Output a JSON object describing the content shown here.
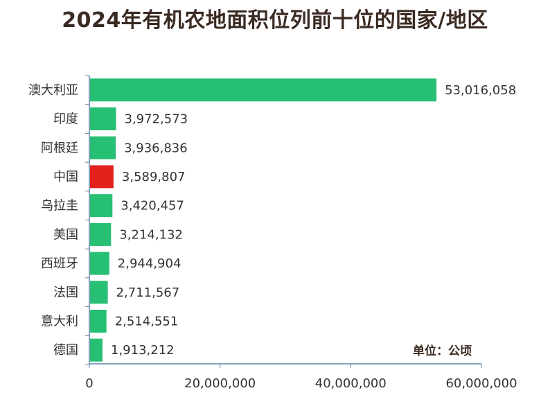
{
  "title": "2024年有机农地面积位列前十位的国家/地区",
  "unit_label": "单位：公顷",
  "colors": {
    "bar_default": "#26bf73",
    "bar_highlight": "#e3201b",
    "axis": "#5a86a8",
    "text": "#333333",
    "title": "#3a2a22"
  },
  "chart_data": {
    "type": "bar",
    "orientation": "horizontal",
    "categories": [
      "澳大利亚",
      "印度",
      "阿根廷",
      "中国",
      "乌拉圭",
      "美国",
      "西班牙",
      "法国",
      "意大利",
      "德国"
    ],
    "values": [
      53016058,
      3972573,
      3936836,
      3589807,
      3420457,
      3214132,
      2944904,
      2711567,
      2514551,
      1913212
    ],
    "value_labels": [
      "53,016,058",
      "3,972,573",
      "3,936,836",
      "3,589,807",
      "3,420,457",
      "3,214,132",
      "2,944,904",
      "2,711,567",
      "2,514,551",
      "1,913,212"
    ],
    "highlight_category": "中国",
    "xlim": [
      0,
      60000000
    ],
    "xticks": [
      0,
      20000000,
      40000000,
      60000000
    ],
    "xtick_labels": [
      "0",
      "20,000,000",
      "40,000,000",
      "60,000,000"
    ],
    "grid": false
  }
}
